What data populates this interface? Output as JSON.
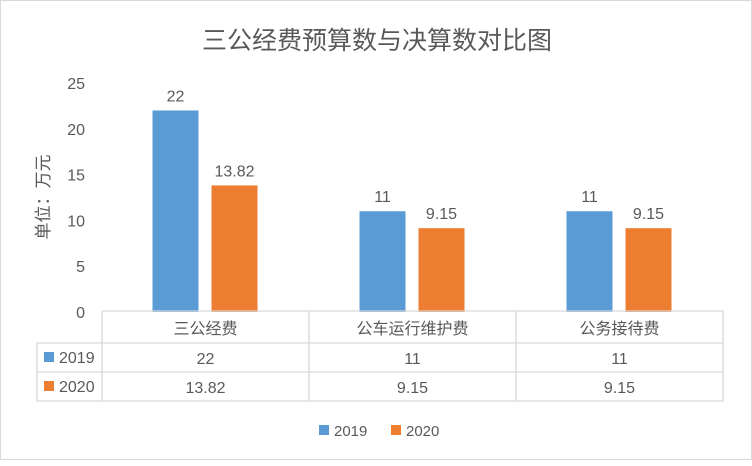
{
  "chart_data": {
    "type": "bar",
    "title": "三公经费预算数与决算数对比图",
    "ylabel": "单位：万元",
    "xlabel": "",
    "ylim": [
      0,
      25
    ],
    "yticks": [
      0,
      5,
      10,
      15,
      20,
      25
    ],
    "categories": [
      "三公经费",
      "公车运行维护费",
      "公务接待费"
    ],
    "series": [
      {
        "name": "2019",
        "color": "#5b9bd5",
        "values": [
          22,
          11,
          11
        ],
        "labels": [
          "22",
          "11",
          "11"
        ]
      },
      {
        "name": "2020",
        "color": "#ed7d31",
        "values": [
          13.82,
          9.15,
          9.15
        ],
        "labels": [
          "13.82",
          "9.15",
          "9.15"
        ]
      }
    ],
    "grid": false,
    "data_table": true,
    "legend": "bottom"
  }
}
